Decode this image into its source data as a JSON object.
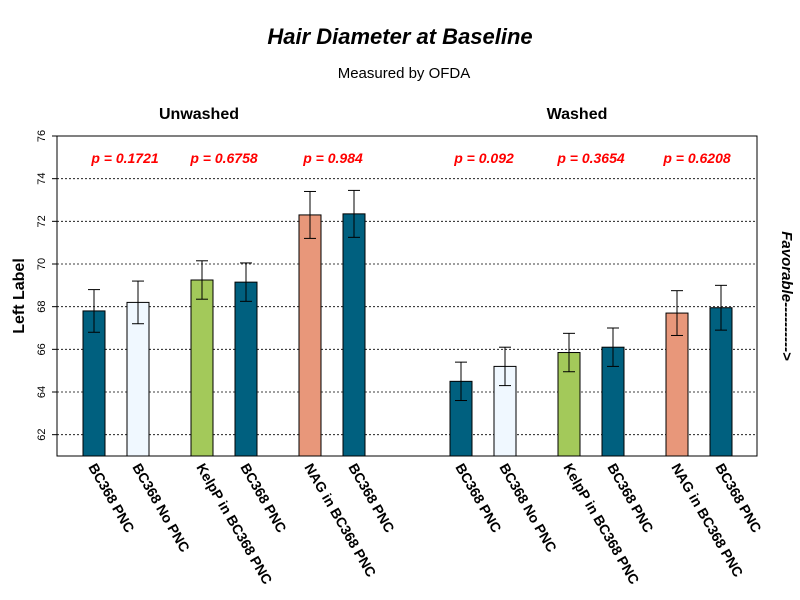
{
  "chart_data": {
    "type": "bar",
    "title": "Hair Diameter at Baseline",
    "subtitle": "Measured by OFDA",
    "ylabel": "Left Label",
    "right_label": "Favorable---------->",
    "ylim": [
      61,
      76
    ],
    "yticks": [
      62,
      64,
      66,
      68,
      70,
      72,
      74,
      76
    ],
    "grid": "horizontal dotted",
    "colors": {
      "BC368 PNC": "#00607f",
      "BC368 No PNC": "#f0f8ff",
      "KelpP in BC368 PNC": "#a3c95a",
      "NAG in BC368 PNC": "#e8977a"
    },
    "groups": [
      {
        "label": "Unwashed",
        "bars": [
          {
            "category": "BC368 PNC",
            "value": 67.8,
            "err": 1.0
          },
          {
            "category": "BC368 No PNC",
            "value": 68.2,
            "err": 1.0
          },
          {
            "category": "KelpP in BC368 PNC",
            "value": 69.25,
            "err": 0.9
          },
          {
            "category": "BC368 PNC",
            "value": 69.15,
            "err": 0.9
          },
          {
            "category": "NAG in BC368 PNC",
            "value": 72.3,
            "err": 1.1
          },
          {
            "category": "BC368 PNC",
            "value": 72.35,
            "err": 1.1
          }
        ],
        "pvalues": [
          "p = 0.1721",
          "p = 0.6758",
          "p = 0.984"
        ]
      },
      {
        "label": "Washed",
        "bars": [
          {
            "category": "BC368 PNC",
            "value": 64.5,
            "err": 0.9
          },
          {
            "category": "BC368 No PNC",
            "value": 65.2,
            "err": 0.9
          },
          {
            "category": "KelpP in BC368 PNC",
            "value": 65.85,
            "err": 0.9
          },
          {
            "category": "BC368 PNC",
            "value": 66.1,
            "err": 0.9
          },
          {
            "category": "NAG in BC368 PNC",
            "value": 67.7,
            "err": 1.05
          },
          {
            "category": "BC368 PNC",
            "value": 67.95,
            "err": 1.05
          }
        ],
        "pvalues": [
          "p = 0.092",
          "p = 0.3654",
          "p = 0.6208"
        ]
      }
    ]
  }
}
